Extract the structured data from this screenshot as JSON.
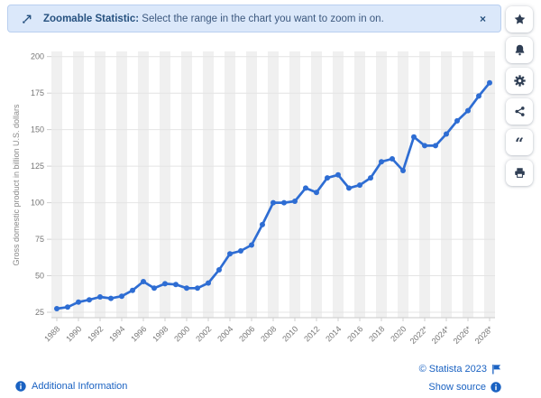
{
  "banner": {
    "title": "Zoomable Statistic:",
    "message": "Select the range in the chart you want to zoom in on.",
    "close_label": "×"
  },
  "sidebar": {
    "buttons": [
      {
        "name": "favorite",
        "icon": "star-icon"
      },
      {
        "name": "notifications",
        "icon": "bell-icon"
      },
      {
        "name": "settings",
        "icon": "gear-icon"
      },
      {
        "name": "share",
        "icon": "share-icon"
      },
      {
        "name": "cite",
        "icon": "quote-icon"
      },
      {
        "name": "print",
        "icon": "printer-icon"
      }
    ]
  },
  "chart_data": {
    "type": "line",
    "title": "",
    "ylabel": "Gross domestic product in billion U.S. dollars",
    "xlabel": "",
    "years": [
      1988,
      1989,
      1990,
      1991,
      1992,
      1993,
      1994,
      1995,
      1996,
      1997,
      1998,
      1999,
      2000,
      2001,
      2002,
      2003,
      2004,
      2005,
      2006,
      2007,
      2008,
      2009,
      2010,
      2011,
      2012,
      2013,
      2014,
      2015,
      2016,
      2017,
      2018,
      2019,
      2020,
      2021,
      2022,
      2023,
      2024,
      2025,
      2026,
      2027,
      2028
    ],
    "x_tick_labels": [
      "1988",
      "1990",
      "1992",
      "1994",
      "1996",
      "1998",
      "2000",
      "2002",
      "2004",
      "2006",
      "2008",
      "2010",
      "2012",
      "2014",
      "2016",
      "2018",
      "2020",
      "2022*",
      "2024*",
      "2026*",
      "2028*"
    ],
    "values": [
      27.5,
      28.5,
      32,
      33.5,
      35.5,
      34.5,
      36,
      40,
      46,
      41.5,
      44.5,
      44,
      41.5,
      41.5,
      45,
      54,
      65,
      67,
      71,
      85,
      100,
      100,
      101,
      110,
      107,
      117,
      119,
      110,
      112,
      117,
      128,
      130,
      122,
      145,
      139,
      139,
      147,
      156,
      163,
      173,
      182
    ],
    "yticks": [
      25,
      50,
      75,
      100,
      125,
      150,
      175,
      200
    ],
    "ylim": [
      25,
      200
    ],
    "grid": true,
    "legend": "none",
    "line_color": "#2e6dd3",
    "band_color": "#f0f0f0",
    "grid_color": "#e4e4e4",
    "tick_label_color": "#767676"
  },
  "footer": {
    "additional_info": "Additional Information",
    "copyright": "© Statista 2023",
    "show_source": "Show source"
  },
  "colors": {
    "banner_bg": "#dbe8fa",
    "banner_border": "#b9cff0",
    "banner_text": "#26517f",
    "link_blue": "#1a62c2",
    "icon_navy": "#2f3e54"
  }
}
